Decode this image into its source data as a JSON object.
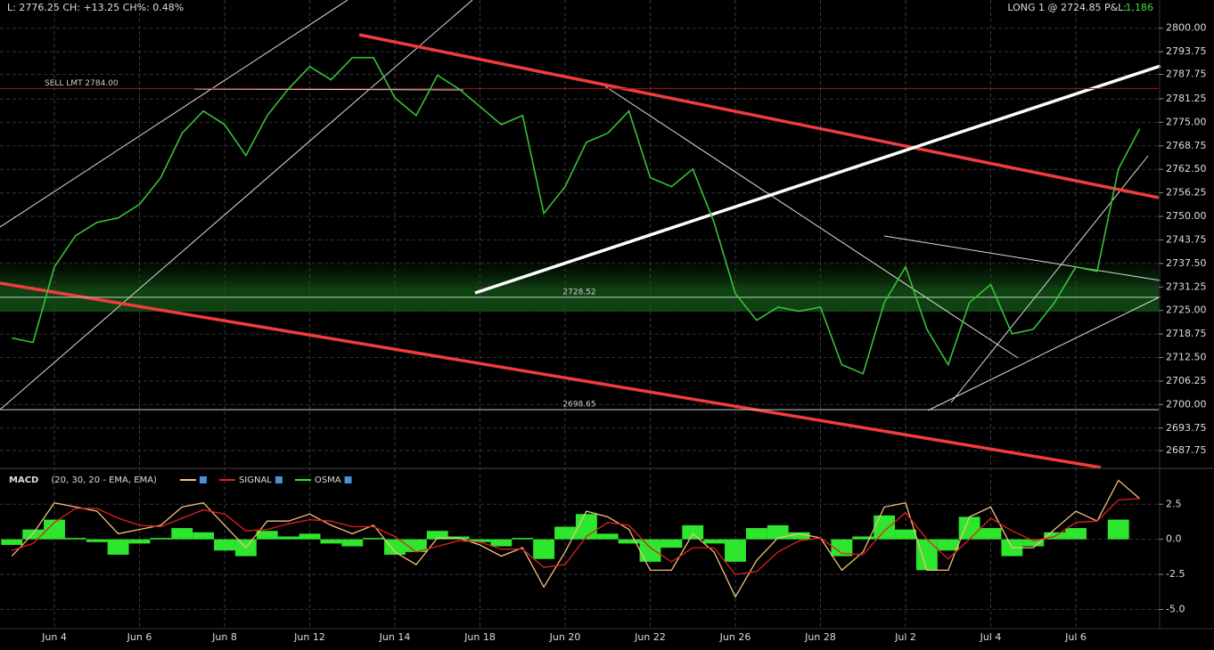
{
  "header": {
    "quote": "L: 2776.25 CH: +13.25 CH%: 0.48%",
    "position": "LONG 1 @ 2724.85 P&L:",
    "pnl": "1,186"
  },
  "chart_data": [
    {
      "type": "line",
      "categories": [
        null,
        null,
        "Jun 4",
        null,
        null,
        null,
        "Jun 6",
        null,
        null,
        null,
        "Jun 8",
        null,
        null,
        null,
        "Jun 12",
        null,
        null,
        null,
        "Jun 14",
        null,
        null,
        null,
        "Jun 18",
        null,
        null,
        null,
        "Jun 20",
        null,
        null,
        null,
        "Jun 22",
        null,
        null,
        null,
        "Jun 26",
        null,
        null,
        null,
        "Jun 28",
        null,
        null,
        null,
        "Jul 2",
        null,
        null,
        null,
        "Jul 4",
        null,
        null,
        null,
        "Jul 6",
        null,
        null,
        null
      ],
      "series": [
        {
          "color": "#36c236",
          "values": [
            2717.7,
            2716.5,
            2736.6,
            2744.9,
            2748.4,
            2749.6,
            2753.2,
            2760.3,
            2772.1,
            2778.0,
            2774.4,
            2766.2,
            2776.8,
            2783.9,
            2789.8,
            2786.3,
            2792.2,
            2792.2,
            2781.5,
            2776.8,
            2787.5,
            2783.9,
            2779.2,
            2774.4,
            2776.8,
            2750.8,
            2757.9,
            2769.7,
            2772.1,
            2778.0,
            2760.3,
            2757.9,
            2762.6,
            2748.4,
            2729.5,
            2722.4,
            2725.9,
            2724.8,
            2725.9,
            2710.6,
            2708.2,
            2727.1,
            2736.6,
            2720.0,
            2710.6,
            2727.1,
            2731.9,
            2718.8,
            2720.0,
            2727.1,
            2736.6,
            2735.4,
            2762.6,
            2773.3
          ]
        }
      ],
      "ylim": [
        2684,
        2807.5
      ],
      "yticks": [
        {
          "value": 2800,
          "label": "2800.00"
        },
        2793.75,
        2787.75,
        2781.25,
        {
          "value": 2775,
          "label": "2775.00"
        },
        2768.75,
        {
          "value": 2762.5,
          "label": "2762.50"
        },
        2756.25,
        {
          "value": 2750,
          "label": "2750.00"
        },
        2743.75,
        {
          "value": 2737.5,
          "label": "2737.50"
        },
        2731.25,
        {
          "value": 2725,
          "label": "2725.00"
        },
        2718.75,
        {
          "value": 2712.5,
          "label": "2712.50"
        },
        2706.25,
        {
          "value": 2700,
          "label": "2700.00"
        },
        2693.75,
        2687.75
      ],
      "levels": [
        {
          "value": 2784,
          "label": "SELL LMT 2784.00",
          "color": "#a01818"
        },
        {
          "value": 2728.52,
          "label": "2728.52",
          "color": "#ccc"
        },
        {
          "value": 2698.65,
          "label": "2698.65",
          "color": "#ccc"
        }
      ],
      "grid": true
    },
    {
      "type": "line",
      "title": "MACD",
      "subtitle": "(20, 30, 20 - EMA, EMA)",
      "series": [
        {
          "color": "#f5c07a",
          "values": [
            -1.2,
            0.4,
            2.6,
            2.3,
            2.0,
            0.4,
            0.7,
            1.0,
            2.3,
            2.6,
            1.0,
            -0.6,
            1.3,
            1.3,
            1.8,
            1.0,
            0.4,
            1.0,
            -0.9,
            -1.8,
            0.1,
            0.1,
            -0.4,
            -1.2,
            -0.6,
            -3.4,
            -0.9,
            2.0,
            1.6,
            0.7,
            -2.2,
            -2.2,
            0.4,
            -0.9,
            -4.1,
            -1.5,
            0.1,
            0.4,
            0.1,
            -2.2,
            -0.9,
            2.3,
            2.6,
            -2.2,
            -2.2,
            1.6,
            2.3,
            -0.6,
            -0.6,
            0.7,
            2.0,
            1.3,
            4.2,
            2.9
          ]
        },
        {
          "name": "SIGNAL",
          "color": "#e02020",
          "values": [
            -0.8,
            -0.3,
            1.2,
            2.2,
            2.2,
            1.5,
            1.0,
            0.9,
            1.5,
            2.1,
            1.8,
            0.6,
            0.7,
            1.1,
            1.4,
            1.3,
            0.9,
            0.9,
            0.2,
            -0.9,
            -0.5,
            -0.1,
            -0.2,
            -0.7,
            -0.7,
            -2.0,
            -1.8,
            0.2,
            1.2,
            1.0,
            -0.6,
            -1.6,
            -0.6,
            -0.6,
            -2.5,
            -2.3,
            -0.9,
            -0.1,
            0.1,
            -1.0,
            -1.1,
            0.6,
            1.9,
            0.0,
            -1.4,
            0.0,
            1.5,
            0.6,
            -0.1,
            0.2,
            1.2,
            1.3,
            2.8,
            2.9
          ]
        },
        {
          "name": "OSMA",
          "color": "#2ee62e",
          "style": "histogram",
          "values": [
            -0.4,
            0.7,
            1.4,
            0.1,
            -0.2,
            -1.1,
            -0.3,
            0.1,
            0.8,
            0.5,
            -0.8,
            -1.2,
            0.6,
            0.2,
            0.4,
            -0.3,
            -0.5,
            0.1,
            -1.1,
            -0.9,
            0.6,
            0.2,
            -0.2,
            -0.5,
            0.1,
            -1.4,
            0.9,
            1.8,
            0.4,
            -0.3,
            -1.6,
            -0.6,
            1.0,
            -0.3,
            -1.6,
            0.8,
            1.0,
            0.5,
            0.0,
            -1.2,
            0.2,
            1.7,
            0.7,
            -2.2,
            -0.8,
            1.6,
            0.8,
            -1.2,
            -0.5,
            0.5,
            0.8,
            0.0,
            1.4,
            0.0
          ]
        }
      ],
      "ylim": [
        -6.3,
        4.8
      ],
      "yticks": [
        2.5,
        {
          "value": 0,
          "label": "0.0"
        },
        -2.5,
        {
          "value": -5,
          "label": "-5.0"
        }
      ],
      "grid": true
    }
  ]
}
